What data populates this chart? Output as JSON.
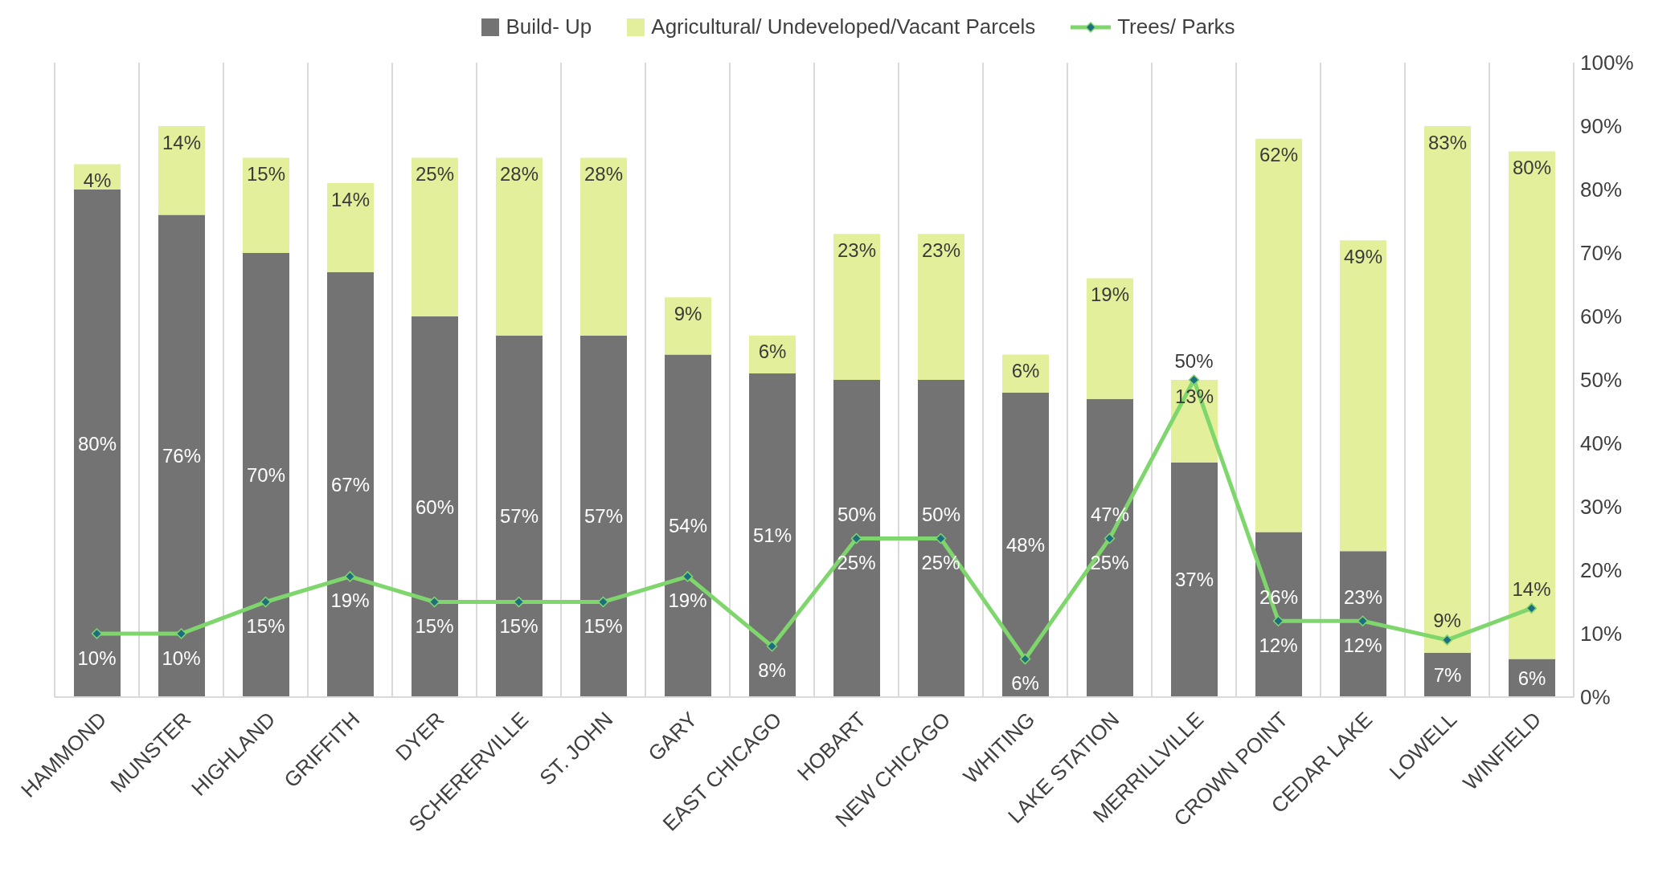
{
  "chart_data": {
    "type": "bar",
    "stacked": true,
    "categories": [
      "HAMMOND",
      "MUNSTER",
      "HIGHLAND",
      "GRIFFITH",
      "DYER",
      "SCHERERVILLE",
      "ST. JOHN",
      "GARY",
      "EAST CHICAGO",
      "HOBART",
      "NEW CHICAGO",
      "WHITING",
      "LAKE STATION",
      "MERRILLVILLE",
      "CROWN POINT",
      "CEDAR LAKE",
      "LOWELL",
      "WINFIELD"
    ],
    "series": [
      {
        "name": "Build- Up",
        "color": "#737373",
        "values": [
          80,
          76,
          70,
          67,
          60,
          57,
          57,
          54,
          51,
          50,
          50,
          48,
          47,
          37,
          26,
          23,
          7,
          6
        ],
        "value_labels": [
          "80%",
          "76%",
          "70%",
          "67%",
          "60%",
          "57%",
          "57%",
          "54%",
          "51%",
          "50%",
          "50%",
          "48%",
          "47%",
          "37%",
          "26%",
          "23%",
          "7%",
          "6%"
        ]
      },
      {
        "name": "Agricultural/ Undeveloped/Vacant Parcels",
        "color": "#e3ef9a",
        "values": [
          4,
          14,
          15,
          14,
          25,
          28,
          28,
          9,
          6,
          23,
          23,
          6,
          19,
          13,
          62,
          49,
          83,
          80
        ],
        "value_labels": [
          "4%",
          "14%",
          "15%",
          "14%",
          "25%",
          "28%",
          "28%",
          "9%",
          "6%",
          "23%",
          "23%",
          "6%",
          "19%",
          "13%",
          "62%",
          "49%",
          "83%",
          "80%"
        ]
      },
      {
        "name": "Trees/ Parks",
        "type": "line",
        "color": "#7ed66c",
        "marker": "diamond",
        "values": [
          10,
          10,
          15,
          19,
          15,
          15,
          15,
          19,
          8,
          25,
          25,
          6,
          25,
          50,
          12,
          12,
          9,
          14
        ],
        "value_labels": [
          "10%",
          "10%",
          "15%",
          "19%",
          "15%",
          "15%",
          "15%",
          "19%",
          "8%",
          "25%",
          "25%",
          "6%",
          "25%",
          "50%",
          "12%",
          "12%",
          "9%",
          "14%"
        ]
      }
    ],
    "ylim": [
      0,
      100
    ],
    "yticks": [
      {
        "value": 0,
        "label": "0%"
      },
      {
        "value": 10,
        "label": "10%"
      },
      {
        "value": 20,
        "label": "20%"
      },
      {
        "value": 30,
        "label": "30%"
      },
      {
        "value": 40,
        "label": "40%"
      },
      {
        "value": 50,
        "label": "50%"
      },
      {
        "value": 60,
        "label": "60%"
      },
      {
        "value": 70,
        "label": "70%"
      },
      {
        "value": 80,
        "label": "80%"
      },
      {
        "value": 90,
        "label": "90%"
      },
      {
        "value": 100,
        "label": "100%"
      }
    ],
    "grid": "x",
    "legend": "top"
  }
}
